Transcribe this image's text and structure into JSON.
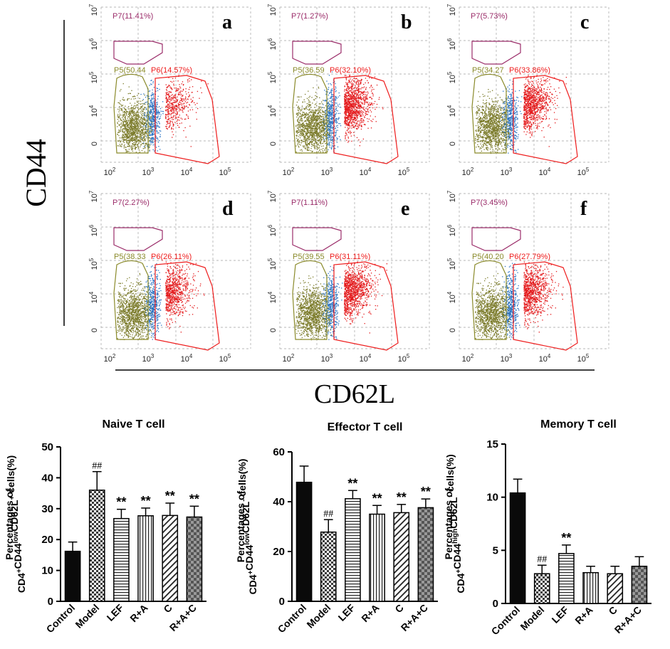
{
  "figure": {
    "y_axis_label": "CD44",
    "x_axis_label": "CD62L"
  },
  "flow_panels": [
    {
      "letter": "a",
      "p7": "P7(11.41%)",
      "p5": "P5(50.44",
      "p6": "P6(14.57%)"
    },
    {
      "letter": "b",
      "p7": "P7(1.27%)",
      "p5": "P5(36.59",
      "p6": "P6(32.10%)"
    },
    {
      "letter": "c",
      "p7": "P7(5.73%)",
      "p5": "P5(34.27",
      "p6": "P6(33.86%)"
    },
    {
      "letter": "d",
      "p7": "P7(2.27%)",
      "p5": "P5(38.33",
      "p6": "P6(26.11%)"
    },
    {
      "letter": "e",
      "p7": "P7(1.11%)",
      "p5": "P5(39.55",
      "p6": "P6(31.11%)"
    },
    {
      "letter": "f",
      "p7": "P7(3.45%)",
      "p5": "P5(40.20",
      "p6": "P6(27.79%)"
    }
  ],
  "flow_axes": {
    "y_ticks": [
      {
        "base": "10",
        "exp": "7"
      },
      {
        "base": "10",
        "exp": "6"
      },
      {
        "base": "10",
        "exp": "5"
      },
      {
        "base": "10",
        "exp": "4"
      },
      {
        "base": "0",
        "exp": ""
      }
    ],
    "x_ticks": [
      {
        "base": "10",
        "exp": "2"
      },
      {
        "base": "10",
        "exp": "3"
      },
      {
        "base": "10",
        "exp": "4"
      },
      {
        "base": "10",
        "exp": "5"
      }
    ]
  },
  "colors": {
    "p7": "#9b2d6a",
    "p5": "#8a8a2a",
    "p6": "#ee1c1c",
    "dots_olive": "#7b7b2a",
    "dots_blue": "#2a73c4",
    "dots_red": "#e41a1c",
    "grid": "#a0a0a0"
  },
  "chart_data": [
    {
      "type": "bar",
      "title": "Naive T cell",
      "ylabel": {
        "pre": "Percentages of",
        "a": "CD4",
        "a_sup": "+",
        "b": "CD44",
        "b_sup": "low",
        "c": "CD62L",
        "c_sup": "+",
        "d": " cells(%)"
      },
      "categories": [
        "Control",
        "Model",
        "LEF",
        "R+A",
        "C",
        "R+A+C"
      ],
      "values": [
        16.2,
        36.0,
        26.8,
        27.7,
        27.8,
        27.3
      ],
      "errors": [
        3.0,
        6.0,
        3.0,
        2.5,
        4.0,
        3.5
      ],
      "annotations": [
        "",
        "##",
        "**",
        "**",
        "**",
        "**"
      ],
      "ylim": [
        0,
        50
      ],
      "yticks": [
        0,
        10,
        20,
        30,
        40,
        50
      ],
      "xlabel": ""
    },
    {
      "type": "bar",
      "title": "Effector T cell",
      "ylabel": {
        "pre": "Percentages of",
        "a": "CD4",
        "a_sup": "+",
        "b": "CD44",
        "b_sup": "low",
        "c": "CD62L",
        "c_sup": "-",
        "d": " cells(%)"
      },
      "categories": [
        "Control",
        "Model",
        "LEF",
        "R+A",
        "C",
        "R+A+C"
      ],
      "values": [
        47.8,
        27.8,
        41.2,
        35.0,
        35.6,
        37.6
      ],
      "errors": [
        6.5,
        5.0,
        3.3,
        3.5,
        3.3,
        3.5
      ],
      "annotations": [
        "",
        "##",
        "**",
        "**",
        "**",
        "**"
      ],
      "ylim": [
        0,
        60
      ],
      "yticks": [
        0,
        20,
        40,
        60
      ],
      "xlabel": ""
    },
    {
      "type": "bar",
      "title": "Memory T cell",
      "ylabel": {
        "pre": "Percentages of",
        "a": "CD4",
        "a_sup": "+",
        "b": "CD44",
        "b_sup": "high",
        "c": "CD62L",
        "c_sup": "-",
        "d": " cells(%)"
      },
      "categories": [
        "Control",
        "Model",
        "LEF",
        "R+A",
        "C",
        "R+A+C"
      ],
      "values": [
        10.4,
        2.8,
        4.7,
        2.9,
        2.8,
        3.5
      ],
      "errors": [
        1.3,
        0.8,
        0.8,
        0.6,
        0.7,
        0.9
      ],
      "annotations": [
        "",
        "##",
        "**",
        "",
        "",
        ""
      ],
      "ylim": [
        0,
        15
      ],
      "yticks": [
        0,
        5,
        10,
        15
      ],
      "xlabel": ""
    }
  ]
}
